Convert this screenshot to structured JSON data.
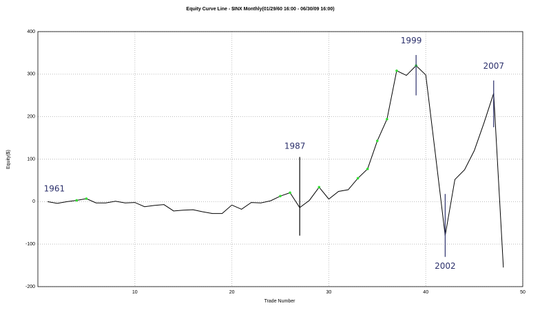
{
  "chart_data": {
    "type": "line",
    "title": "Equity Curve Line - $INX Monthly(01/29/60 16:00 - 06/30/09 16:00)",
    "x_label": "Trade Number",
    "y_label": "Equity($)",
    "x": [
      1,
      2,
      3,
      4,
      5,
      6,
      7,
      8,
      9,
      10,
      11,
      12,
      13,
      14,
      15,
      16,
      17,
      18,
      19,
      20,
      21,
      22,
      23,
      24,
      25,
      26,
      27,
      28,
      29,
      30,
      31,
      32,
      33,
      34,
      35,
      36,
      37,
      38,
      39,
      40,
      41,
      42,
      43,
      44,
      45,
      46,
      47,
      48
    ],
    "series": [
      {
        "color": "#000000",
        "values": [
          0,
          -4,
          0,
          3,
          7,
          -3,
          -3,
          1,
          -3,
          -2,
          -12,
          -9,
          -7,
          -22,
          -20,
          -19,
          -24,
          -28,
          -28,
          -8,
          -18,
          -2,
          -3,
          2,
          13,
          21,
          -14,
          3,
          34,
          6,
          24,
          28,
          55,
          77,
          143,
          194,
          308,
          297,
          320,
          298,
          110,
          -80,
          52,
          75,
          120,
          185,
          255,
          -155
        ]
      },
      {
        "color": "#33dd33",
        "values": [
          null,
          null,
          null,
          3,
          7,
          null,
          null,
          null,
          null,
          null,
          null,
          null,
          null,
          null,
          null,
          null,
          null,
          null,
          null,
          null,
          null,
          null,
          null,
          null,
          13,
          21,
          null,
          null,
          34,
          null,
          null,
          null,
          55,
          77,
          143,
          194,
          308,
          null,
          320,
          null,
          null,
          null,
          null,
          null,
          null,
          null,
          null,
          null
        ]
      }
    ],
    "xlim": [
      0,
      50
    ],
    "ylim": [
      -200,
      400
    ],
    "xticks": [
      10,
      20,
      30,
      40,
      50
    ],
    "yticks": [
      -200,
      -100,
      0,
      100,
      200,
      300,
      400
    ],
    "grid": true,
    "annotations": [
      {
        "text": "1961",
        "label_x": 1.7,
        "label_y": 30
      },
      {
        "text": "1987",
        "label_x": 26.5,
        "label_y": 130,
        "x": 27,
        "y_range": [
          -80,
          105
        ]
      },
      {
        "text": "1999",
        "label_x": 38.5,
        "label_y": 378,
        "x": 39,
        "y_range": [
          250,
          345
        ]
      },
      {
        "text": "2002",
        "label_x": 42,
        "label_y": -152,
        "x": 42,
        "y_range": [
          -130,
          18
        ]
      },
      {
        "text": "2007",
        "label_x": 47,
        "label_y": 318,
        "x": 47,
        "y_range": [
          175,
          285
        ]
      }
    ]
  }
}
